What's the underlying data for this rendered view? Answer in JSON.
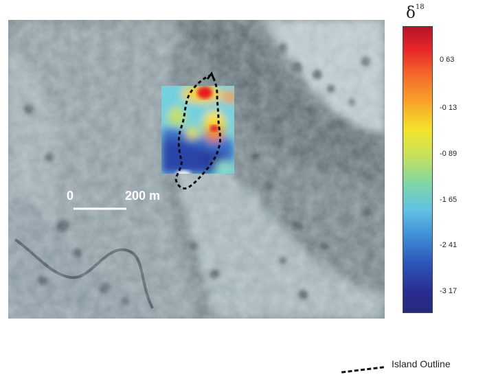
{
  "colorbar": {
    "symbol": "δ",
    "superscript": "18",
    "ticks": [
      "0 63",
      "-0 13",
      "-0 89",
      "-1 65",
      "-2 41",
      "-3 17"
    ]
  },
  "scale_bar": {
    "start_label": "0",
    "end_label": "200 m"
  },
  "legend": {
    "label": "Island Outline"
  }
}
